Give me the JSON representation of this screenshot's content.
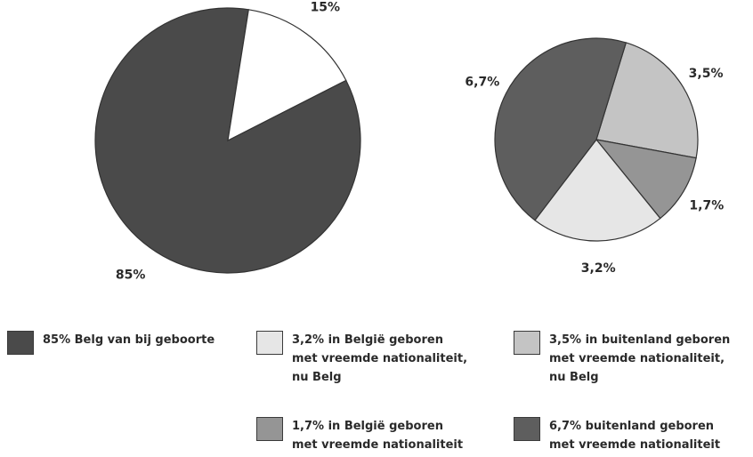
{
  "chart_data": [
    {
      "type": "pie",
      "title": "",
      "slices": [
        {
          "label": "85%",
          "value": 85,
          "color": "#4a4a4a"
        },
        {
          "label": "15%",
          "value": 15,
          "color": "#ffffff"
        }
      ]
    },
    {
      "type": "pie",
      "title": "",
      "slices": [
        {
          "label": "3,5%",
          "value": 3.5,
          "color": "#c4c4c4"
        },
        {
          "label": "1,7%",
          "value": 1.7,
          "color": "#959595"
        },
        {
          "label": "3,2%",
          "value": 3.2,
          "color": "#e6e6e6"
        },
        {
          "label": "6,7%",
          "value": 6.7,
          "color": "#5e5e5e"
        }
      ]
    }
  ],
  "legend": [
    {
      "text": "85% Belg van bij geboorte",
      "color": "#4a4a4a"
    },
    {
      "text": "3,2% in België geboren\nmet vreemde nationaliteit,\nnu Belg",
      "color": "#e6e6e6"
    },
    {
      "text": "3,5% in buitenland geboren\nmet vreemde nationaliteit,\nnu Belg",
      "color": "#c4c4c4"
    },
    {
      "text": "1,7% in België geboren\nmet vreemde nationaliteit",
      "color": "#959595"
    },
    {
      "text": "6,7% buitenland geboren\nmet vreemde nationaliteit",
      "color": "#5e5e5e"
    }
  ]
}
